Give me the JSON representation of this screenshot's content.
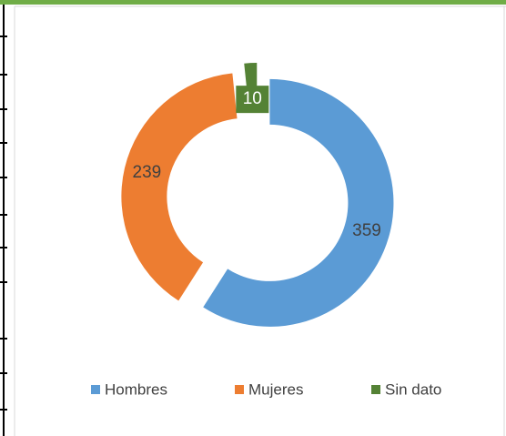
{
  "chart_data": {
    "type": "donut",
    "categories": [
      "Hombres",
      "Mujeres",
      "Sin dato"
    ],
    "values": [
      359,
      239,
      10
    ],
    "colors": [
      "#5b9bd5",
      "#ed7d31",
      "#548235"
    ],
    "legend": "bottom"
  }
}
